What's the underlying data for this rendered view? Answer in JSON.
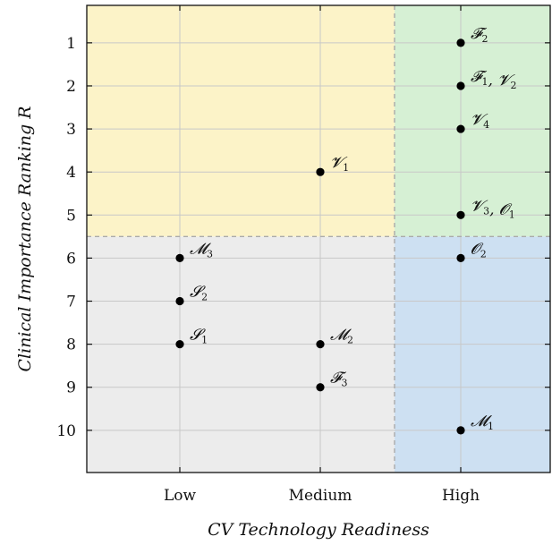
{
  "chart_data": {
    "type": "scatter",
    "title": "",
    "xlabel": "CV Technology Readiness",
    "ylabel": "Clinical Importance Ranking R",
    "categories": [
      "Low",
      "Medium",
      "High"
    ],
    "y_ticks": [
      1,
      2,
      3,
      4,
      5,
      6,
      7,
      8,
      9,
      10
    ],
    "ylim": [
      10.98,
      0.13
    ],
    "y_inverted": true,
    "grid": true,
    "regions": [
      {
        "name": "low-readiness-high-importance",
        "x_range": [
          "Low",
          "Medium"
        ],
        "y_range": [
          0.13,
          5.5
        ],
        "color": "#fcf3c8"
      },
      {
        "name": "high-readiness-high-importance",
        "x_range": [
          "High"
        ],
        "y_range": [
          0.13,
          5.5
        ],
        "color": "#d6f0d4"
      },
      {
        "name": "low-readiness-low-importance",
        "x_range": [
          "Low",
          "Medium"
        ],
        "y_range": [
          5.5,
          10.98
        ],
        "color": "#ececec"
      },
      {
        "name": "high-readiness-low-importance",
        "x_range": [
          "High"
        ],
        "y_range": [
          5.5,
          10.98
        ],
        "color": "#cde0f2"
      }
    ],
    "divider_color": "#aaaaaa",
    "points": [
      {
        "label": "𝓕",
        "sub": "2",
        "x": "High",
        "y": 1
      },
      {
        "label": "𝓕",
        "sub": "1",
        "label2": "𝓥",
        "sub2": "2",
        "x": "High",
        "y": 2
      },
      {
        "label": "𝓥",
        "sub": "4",
        "x": "High",
        "y": 3
      },
      {
        "label": "𝓥",
        "sub": "1",
        "x": "Medium",
        "y": 4
      },
      {
        "label": "𝓥",
        "sub": "3",
        "label2": "𝓞",
        "sub2": "1",
        "x": "High",
        "y": 5
      },
      {
        "label": "𝓜",
        "sub": "3",
        "x": "Low",
        "y": 6
      },
      {
        "label": "𝓞",
        "sub": "2",
        "x": "High",
        "y": 6
      },
      {
        "label": "𝓢",
        "sub": "2",
        "x": "Low",
        "y": 7
      },
      {
        "label": "𝓢",
        "sub": "1",
        "x": "Low",
        "y": 8
      },
      {
        "label": "𝓜",
        "sub": "2",
        "x": "Medium",
        "y": 8
      },
      {
        "label": "𝓕",
        "sub": "3",
        "x": "Medium",
        "y": 9
      },
      {
        "label": "𝓜",
        "sub": "1",
        "x": "High",
        "y": 10
      }
    ]
  }
}
